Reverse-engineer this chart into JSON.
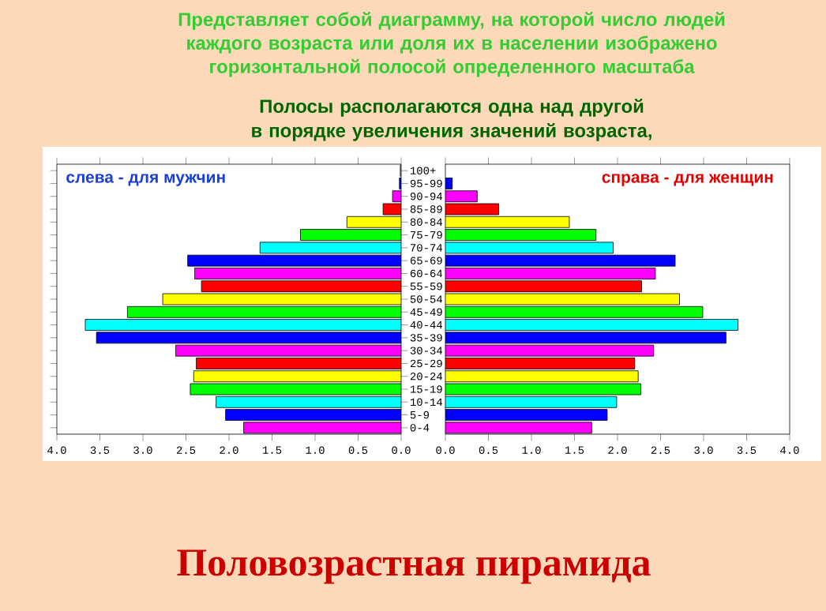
{
  "chart_data": [
    {
      "type": "bar",
      "orientation": "horizontal",
      "title": "Половозрастная пирамида",
      "subtitle": "Представляет собой диаграмму, на которой число людей каждого возраста или доля их в населении изображено горизонтальной  полосой определенного масштаба",
      "annotations": [
        "Полосы располагаются одна над другой в порядке увеличения значений возраста,",
        "слева - для мужчин"
      ],
      "categories": [
        "100+",
        "95-99",
        "90-94",
        "85-89",
        "80-84",
        "75-79",
        "70-74",
        "65-69",
        "60-64",
        "55-59",
        "50-54",
        "45-49",
        "40-44",
        "35-39",
        "30-34",
        "25-29",
        "20-24",
        "15-19",
        "10-14",
        "5-9",
        "0-4"
      ],
      "series": [
        {
          "values": [
            0.01,
            0.02,
            0.1,
            0.21,
            0.63,
            1.17,
            1.64,
            2.48,
            2.4,
            2.32,
            2.77,
            3.18,
            3.67,
            3.54,
            2.62,
            2.38,
            2.41,
            2.45,
            2.15,
            2.04,
            1.83
          ],
          "colors": [
            "#00ffff",
            "#0000ff",
            "#ff00ff",
            "#ff0000",
            "#ffff00",
            "#00ff00",
            "#00ffff",
            "#0000ff",
            "#ff00ff",
            "#ff0000",
            "#ffff00",
            "#00ff00",
            "#00ffff",
            "#0000ff",
            "#ff00ff",
            "#ff0000",
            "#ffff00",
            "#00ff00",
            "#00ffff",
            "#0000ff",
            "#ff00ff"
          ]
        }
      ],
      "xlim": [
        4,
        0
      ],
      "xticks": [
        {
          "value": 4,
          "label": "4.0"
        },
        {
          "value": 3.5,
          "label": "3.5"
        },
        {
          "value": 3,
          "label": "3.0"
        },
        {
          "value": 2.5,
          "label": "2.5"
        },
        {
          "value": 2,
          "label": "2.0"
        },
        {
          "value": 1.5,
          "label": "1.5"
        },
        {
          "value": 1,
          "label": "1.0"
        },
        {
          "value": 0.5,
          "label": "0.5"
        },
        {
          "value": 0,
          "label": "0.0"
        }
      ]
    },
    {
      "type": "bar",
      "orientation": "horizontal",
      "annotations": [
        "справа - для женщин"
      ],
      "series": [
        {
          "values": [
            null,
            0.08,
            0.37,
            0.62,
            1.44,
            1.75,
            1.95,
            2.67,
            2.44,
            2.28,
            2.72,
            2.99,
            3.4,
            3.26,
            2.42,
            2.2,
            2.24,
            2.27,
            1.99,
            1.88,
            1.7
          ],
          "colors": [
            "#00ffff",
            "#0000ff",
            "#ff00ff",
            "#ff0000",
            "#ffff00",
            "#00ff00",
            "#00ffff",
            "#0000ff",
            "#ff00ff",
            "#ff0000",
            "#ffff00",
            "#00ff00",
            "#00ffff",
            "#0000ff",
            "#ff00ff",
            "#ff0000",
            "#ffff00",
            "#00ff00",
            "#00ffff",
            "#0000ff",
            "#ff00ff"
          ]
        }
      ],
      "xlim": [
        0,
        4
      ],
      "xticks": [
        {
          "value": 0,
          "label": "0.0"
        },
        {
          "value": 0.5,
          "label": "0.5"
        },
        {
          "value": 1,
          "label": "1.0"
        },
        {
          "value": 1.5,
          "label": "1.5"
        },
        {
          "value": 2,
          "label": "2.0"
        },
        {
          "value": 2.5,
          "label": "2.5"
        },
        {
          "value": 3,
          "label": "3.0"
        },
        {
          "value": 3.5,
          "label": "3.5"
        },
        {
          "value": 4,
          "label": "4.0"
        }
      ]
    }
  ]
}
